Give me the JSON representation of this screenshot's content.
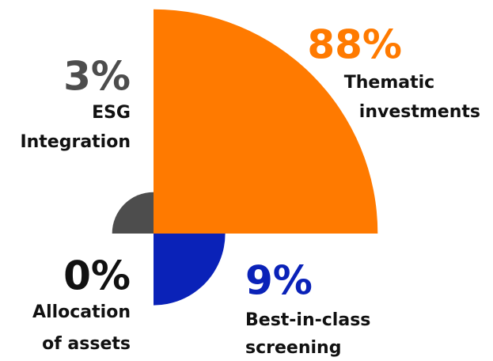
{
  "chart_data": {
    "type": "polar-quadrant",
    "categories": [
      [
        "Thematic",
        "investments"
      ],
      [
        "Best-in-class",
        "screening"
      ],
      [
        "Allocation",
        "of assets"
      ],
      [
        "ESG",
        "Integration"
      ]
    ],
    "values": [
      88,
      9,
      0,
      3
    ],
    "value_labels": [
      "88%",
      "9%",
      "0%",
      "3%"
    ],
    "colors": [
      "#ff7a00",
      "#0a22b8",
      "#111111",
      "#4d4d4d"
    ]
  }
}
